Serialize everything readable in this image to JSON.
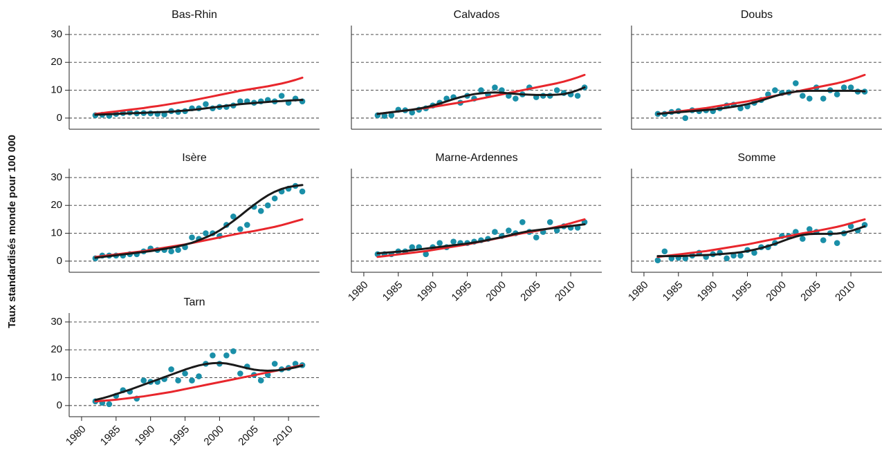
{
  "ylabel": "Taux standardisés monde pour 100 000",
  "chart_data": [
    {
      "type": "line",
      "title": "Bas-Rhin",
      "ytick_labels": true,
      "x": [
        1982,
        1983,
        1984,
        1985,
        1986,
        1987,
        1988,
        1989,
        1990,
        1991,
        1992,
        1993,
        1994,
        1995,
        1996,
        1997,
        1998,
        1999,
        2000,
        2001,
        2002,
        2003,
        2004,
        2005,
        2006,
        2007,
        2008,
        2009,
        2010,
        2011,
        2012
      ],
      "series": [
        {
          "type": "scatter",
          "color": "#1a8fa8",
          "values": [
            1,
            1.2,
            0.8,
            1.5,
            1.8,
            2,
            1.7,
            1.8,
            1.7,
            1.5,
            1.3,
            2.5,
            2.2,
            2.5,
            3.5,
            3.5,
            5,
            3.5,
            4,
            4,
            4.5,
            6,
            6,
            5.5,
            6,
            6.5,
            6,
            8,
            5.5,
            7,
            6
          ]
        },
        {
          "type": "line",
          "color": "#e8262c",
          "values": [
            1.5,
            1.8,
            2.1,
            2.4,
            2.7,
            3.0,
            3.3,
            3.6,
            4.0,
            4.3,
            4.7,
            5.1,
            5.5,
            5.9,
            6.3,
            6.8,
            7.3,
            7.8,
            8.3,
            8.8,
            9.3,
            9.8,
            10.2,
            10.6,
            11.0,
            11.4,
            11.9,
            12.4,
            13.0,
            13.7,
            14.5
          ]
        },
        {
          "type": "line",
          "color": "#1a1a1a",
          "values": [
            1.2,
            1.3,
            1.4,
            1.5,
            1.6,
            1.7,
            1.8,
            1.9,
            2.0,
            2.1,
            2.2,
            2.3,
            2.5,
            2.7,
            2.9,
            3.2,
            3.5,
            3.8,
            4.1,
            4.4,
            4.7,
            5.0,
            5.2,
            5.4,
            5.6,
            5.8,
            6.0,
            6.1,
            6.3,
            6.4,
            6.5
          ]
        }
      ],
      "xlim": [
        1978.2,
        2014.5
      ],
      "ylim": [
        -4,
        33.2
      ],
      "yticks": [
        0,
        10,
        20,
        30
      ]
    },
    {
      "type": "line",
      "title": "Calvados",
      "ytick_labels": false,
      "x": [
        1982,
        1983,
        1984,
        1985,
        1986,
        1987,
        1988,
        1989,
        1990,
        1991,
        1992,
        1993,
        1994,
        1995,
        1996,
        1997,
        1998,
        1999,
        2000,
        2001,
        2002,
        2003,
        2004,
        2005,
        2006,
        2007,
        2008,
        2009,
        2010,
        2011,
        2012
      ],
      "series": [
        {
          "type": "scatter",
          "color": "#1a8fa8",
          "values": [
            1,
            0.8,
            1,
            3,
            2.8,
            2,
            3,
            3.5,
            4.5,
            5.5,
            7,
            7.5,
            5.5,
            8,
            7,
            10,
            8.5,
            11,
            10,
            8,
            7,
            8.5,
            11,
            7.5,
            8,
            8,
            10,
            9,
            8.5,
            8,
            11
          ]
        },
        {
          "type": "line",
          "color": "#e8262c",
          "values": [
            1.5,
            1.8,
            2.1,
            2.4,
            2.7,
            3.0,
            3.3,
            3.6,
            4.0,
            4.4,
            4.8,
            5.2,
            5.6,
            6.0,
            6.5,
            7.0,
            7.5,
            8.0,
            8.5,
            9.0,
            9.5,
            10.0,
            10.5,
            11.0,
            11.5,
            12.0,
            12.5,
            13.1,
            13.8,
            14.6,
            15.5
          ]
        },
        {
          "type": "line",
          "color": "#1a1a1a",
          "values": [
            1.5,
            1.8,
            2.1,
            2.4,
            2.7,
            3.0,
            3.4,
            3.9,
            4.5,
            5.2,
            6.0,
            6.8,
            7.5,
            8.1,
            8.6,
            8.9,
            9.1,
            9.2,
            9.1,
            8.9,
            8.7,
            8.5,
            8.4,
            8.3,
            8.3,
            8.3,
            8.4,
            8.6,
            9.2,
            10.0,
            11.0
          ]
        }
      ],
      "xlim": [
        1978.2,
        2014.5
      ],
      "ylim": [
        -4,
        33.2
      ],
      "yticks": [
        0,
        10,
        20,
        30
      ]
    },
    {
      "type": "line",
      "title": "Doubs",
      "ytick_labels": false,
      "x": [
        1982,
        1983,
        1984,
        1985,
        1986,
        1987,
        1988,
        1989,
        1990,
        1991,
        1992,
        1993,
        1994,
        1995,
        1996,
        1997,
        1998,
        1999,
        2000,
        2001,
        2002,
        2003,
        2004,
        2005,
        2006,
        2007,
        2008,
        2009,
        2010,
        2011,
        2012
      ],
      "series": [
        {
          "type": "scatter",
          "color": "#1a8fa8",
          "values": [
            1.5,
            1.5,
            2.2,
            2.5,
            0,
            2.8,
            2.5,
            2.8,
            2.5,
            3.5,
            4.5,
            4.8,
            3.5,
            4.2,
            5.5,
            6.5,
            8.5,
            10,
            9,
            9.2,
            12.5,
            8,
            7,
            11,
            7,
            10,
            8.5,
            11,
            11,
            9.5,
            9.5
          ]
        },
        {
          "type": "line",
          "color": "#e8262c",
          "values": [
            1.5,
            1.8,
            2.1,
            2.4,
            2.7,
            3.0,
            3.3,
            3.6,
            4.0,
            4.4,
            4.8,
            5.2,
            5.6,
            6.0,
            6.5,
            7.0,
            7.5,
            8.0,
            8.5,
            9.0,
            9.5,
            10.0,
            10.5,
            11.0,
            11.5,
            12.0,
            12.5,
            13.1,
            13.8,
            14.6,
            15.5
          ]
        },
        {
          "type": "line",
          "color": "#1a1a1a",
          "values": [
            1.5,
            1.7,
            1.9,
            2.1,
            2.3,
            2.5,
            2.7,
            2.9,
            3.1,
            3.4,
            3.7,
            4.1,
            4.5,
            5.0,
            5.6,
            6.3,
            7.1,
            7.9,
            8.6,
            9.1,
            9.5,
            9.7,
            9.8,
            9.8,
            9.8,
            9.8,
            9.8,
            9.8,
            9.8,
            9.7,
            9.6
          ]
        }
      ],
      "xlim": [
        1978.2,
        2014.5
      ],
      "ylim": [
        -4,
        33.2
      ],
      "yticks": [
        0,
        10,
        20,
        30
      ]
    },
    {
      "type": "line",
      "title": "Isère",
      "ytick_labels": true,
      "x": [
        1982,
        1983,
        1984,
        1985,
        1986,
        1987,
        1988,
        1989,
        1990,
        1991,
        1992,
        1993,
        1994,
        1995,
        1996,
        1997,
        1998,
        1999,
        2000,
        2001,
        2002,
        2003,
        2004,
        2005,
        2006,
        2007,
        2008,
        2009,
        2010,
        2011,
        2012
      ],
      "series": [
        {
          "type": "scatter",
          "color": "#1a8fa8",
          "values": [
            1,
            2,
            2,
            2,
            2,
            2.5,
            2.5,
            3.5,
            4.5,
            4,
            4,
            3.5,
            4,
            5,
            8.5,
            8,
            10,
            10,
            9,
            13,
            16,
            11.5,
            13,
            19.5,
            18,
            20,
            22.5,
            25,
            26,
            27,
            25
          ]
        },
        {
          "type": "line",
          "color": "#e8262c",
          "values": [
            1.5,
            1.8,
            2.1,
            2.4,
            2.7,
            3.0,
            3.3,
            3.6,
            4.0,
            4.4,
            4.8,
            5.2,
            5.6,
            6.0,
            6.5,
            7.0,
            7.5,
            8.0,
            8.5,
            9.0,
            9.5,
            10.0,
            10.4,
            10.8,
            11.3,
            11.8,
            12.3,
            12.9,
            13.6,
            14.3,
            15.0
          ]
        },
        {
          "type": "line",
          "color": "#1a1a1a",
          "values": [
            1.2,
            1.5,
            1.8,
            2.1,
            2.4,
            2.7,
            3.0,
            3.3,
            3.6,
            4.0,
            4.4,
            4.8,
            5.3,
            5.9,
            6.6,
            7.5,
            8.5,
            9.6,
            11.0,
            12.6,
            14.4,
            16.3,
            18.3,
            20.2,
            22.0,
            23.6,
            24.9,
            25.9,
            26.6,
            27.0,
            27.3
          ]
        }
      ],
      "xlim": [
        1978.2,
        2014.5
      ],
      "ylim": [
        -4,
        33.2
      ],
      "yticks": [
        0,
        10,
        20,
        30
      ]
    },
    {
      "type": "line",
      "title": "Marne-Ardennes",
      "ytick_labels": false,
      "x": [
        1982,
        1983,
        1984,
        1985,
        1986,
        1987,
        1988,
        1989,
        1990,
        1991,
        1992,
        1993,
        1994,
        1995,
        1996,
        1997,
        1998,
        1999,
        2000,
        2001,
        2002,
        2003,
        2004,
        2005,
        2006,
        2007,
        2008,
        2009,
        2010,
        2011,
        2012
      ],
      "series": [
        {
          "type": "scatter",
          "color": "#1a8fa8",
          "values": [
            2.5,
            2.5,
            2.5,
            3.5,
            3.5,
            5,
            5,
            2.5,
            5,
            6.5,
            5,
            7,
            6.5,
            6.5,
            7,
            7.5,
            8,
            10.5,
            9,
            11,
            10,
            14,
            10.5,
            8.5,
            10.5,
            14,
            11,
            12.5,
            12,
            12,
            14
          ]
        },
        {
          "type": "line",
          "color": "#e8262c",
          "values": [
            1.5,
            1.8,
            2.1,
            2.4,
            2.7,
            3.0,
            3.3,
            3.6,
            4.0,
            4.4,
            4.8,
            5.2,
            5.6,
            6.0,
            6.5,
            7.0,
            7.5,
            8.0,
            8.5,
            9.0,
            9.5,
            10.0,
            10.4,
            10.8,
            11.3,
            11.8,
            12.3,
            12.9,
            13.6,
            14.3,
            15.0
          ]
        },
        {
          "type": "line",
          "color": "#1a1a1a",
          "values": [
            2.8,
            3.0,
            3.2,
            3.4,
            3.6,
            3.9,
            4.2,
            4.5,
            4.8,
            5.1,
            5.4,
            5.7,
            6.0,
            6.3,
            6.7,
            7.1,
            7.6,
            8.1,
            8.6,
            9.2,
            9.8,
            10.3,
            10.8,
            11.1,
            11.4,
            11.7,
            12.0,
            12.3,
            12.6,
            12.9,
            13.2
          ]
        }
      ],
      "xlim": [
        1978.2,
        2014.5
      ],
      "ylim": [
        -4,
        33.2
      ],
      "yticks": [
        0,
        10,
        20,
        30
      ],
      "xticks": [
        1980,
        1985,
        1990,
        1995,
        2000,
        2005,
        2010
      ]
    },
    {
      "type": "line",
      "title": "Somme",
      "ytick_labels": false,
      "x": [
        1982,
        1983,
        1984,
        1985,
        1986,
        1987,
        1988,
        1989,
        1990,
        1991,
        1992,
        1993,
        1994,
        1995,
        1996,
        1997,
        1998,
        1999,
        2000,
        2001,
        2002,
        2003,
        2004,
        2005,
        2006,
        2007,
        2008,
        2009,
        2010,
        2011,
        2012
      ],
      "series": [
        {
          "type": "scatter",
          "color": "#1a8fa8",
          "values": [
            0.3,
            3.5,
            1,
            1.2,
            1,
            2,
            3,
            1.5,
            2.5,
            3,
            1,
            2,
            2,
            4,
            3,
            5,
            5,
            6.5,
            9,
            9,
            10.5,
            8,
            11.5,
            10.5,
            7.5,
            10,
            6.5,
            10,
            12.5,
            11,
            13
          ]
        },
        {
          "type": "line",
          "color": "#e8262c",
          "values": [
            1.5,
            1.8,
            2.1,
            2.4,
            2.7,
            3.0,
            3.3,
            3.6,
            4.0,
            4.4,
            4.8,
            5.2,
            5.6,
            6.0,
            6.5,
            7.0,
            7.5,
            8.0,
            8.5,
            9.0,
            9.5,
            10.0,
            10.4,
            10.8,
            11.3,
            11.8,
            12.3,
            12.9,
            13.6,
            14.3,
            15.0
          ]
        },
        {
          "type": "line",
          "color": "#1a1a1a",
          "values": [
            1.8,
            1.8,
            1.8,
            1.8,
            1.9,
            2.0,
            2.1,
            2.2,
            2.3,
            2.5,
            2.7,
            2.9,
            3.2,
            3.6,
            4.1,
            4.7,
            5.4,
            6.2,
            7.1,
            8.0,
            8.8,
            9.4,
            9.7,
            9.8,
            9.8,
            9.8,
            9.9,
            10.2,
            10.8,
            11.6,
            12.5
          ]
        }
      ],
      "xlim": [
        1978.2,
        2014.5
      ],
      "ylim": [
        -4,
        33.2
      ],
      "yticks": [
        0,
        10,
        20,
        30
      ],
      "xticks": [
        1980,
        1985,
        1990,
        1995,
        2000,
        2005,
        2010
      ]
    },
    {
      "type": "line",
      "title": "Tarn",
      "ytick_labels": true,
      "x": [
        1982,
        1983,
        1984,
        1985,
        1986,
        1987,
        1988,
        1989,
        1990,
        1991,
        1992,
        1993,
        1994,
        1995,
        1996,
        1997,
        1998,
        1999,
        2000,
        2001,
        2002,
        2003,
        2004,
        2005,
        2006,
        2007,
        2008,
        2009,
        2010,
        2011,
        2012
      ],
      "series": [
        {
          "type": "scatter",
          "color": "#1a8fa8",
          "values": [
            1.5,
            1,
            0.5,
            3.5,
            5.5,
            5,
            2.5,
            9,
            8.5,
            8.5,
            9.5,
            13,
            9,
            11.5,
            9,
            10.5,
            15,
            18,
            15,
            18,
            19.5,
            11.5,
            14,
            11,
            9,
            11,
            15,
            13,
            13.5,
            15,
            14.5
          ]
        },
        {
          "type": "line",
          "color": "#e8262c",
          "values": [
            1.5,
            1.7,
            1.9,
            2.1,
            2.4,
            2.7,
            3.0,
            3.3,
            3.7,
            4.1,
            4.5,
            4.9,
            5.4,
            5.9,
            6.4,
            6.9,
            7.4,
            7.9,
            8.4,
            8.9,
            9.4,
            9.9,
            10.4,
            10.9,
            11.4,
            11.9,
            12.4,
            12.9,
            13.4,
            14.0,
            14.5
          ]
        },
        {
          "type": "line",
          "color": "#1a1a1a",
          "values": [
            2.0,
            2.6,
            3.3,
            4.1,
            4.9,
            5.7,
            6.6,
            7.5,
            8.4,
            9.3,
            10.2,
            11.1,
            12.0,
            12.9,
            13.7,
            14.4,
            14.9,
            15.2,
            15.3,
            15.1,
            14.6,
            14.0,
            13.4,
            12.9,
            12.6,
            12.5,
            12.6,
            12.8,
            13.2,
            13.7,
            14.3
          ]
        }
      ],
      "xlim": [
        1978.2,
        2014.5
      ],
      "ylim": [
        -4,
        33.2
      ],
      "yticks": [
        0,
        10,
        20,
        30
      ],
      "xticks": [
        1980,
        1985,
        1990,
        1995,
        2000,
        2005,
        2010
      ]
    }
  ]
}
